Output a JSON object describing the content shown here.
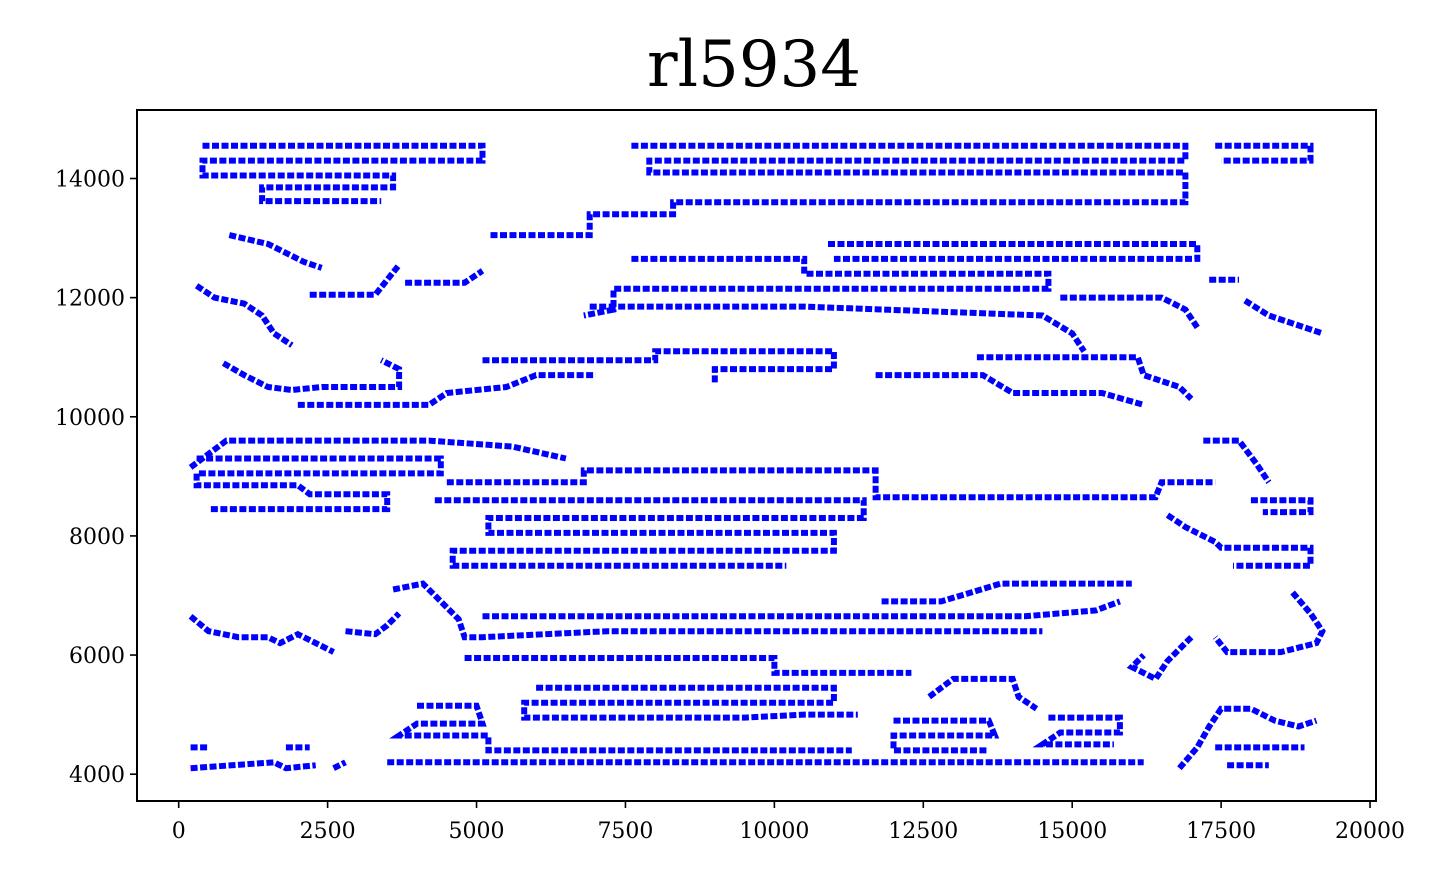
{
  "chart_data": {
    "type": "line",
    "title": "rl5934",
    "xlabel": "",
    "ylabel": "",
    "xlim": [
      -700,
      20100
    ],
    "ylim": [
      3550,
      15150
    ],
    "xticks": [
      0,
      2500,
      5000,
      7500,
      10000,
      12500,
      15000,
      17500,
      20000
    ],
    "yticks": [
      4000,
      6000,
      8000,
      10000,
      12000,
      14000
    ],
    "grid": false,
    "legend": "none",
    "series": [
      {
        "color": "#0000ff",
        "segments": [
          [
            [
              400,
              14550
            ],
            [
              5100,
              14550
            ],
            [
              5100,
              14300
            ],
            [
              400,
              14300
            ],
            [
              400,
              14050
            ],
            [
              3600,
              14050
            ],
            [
              3600,
              13850
            ],
            [
              1400,
              13850
            ],
            [
              1400,
              13620
            ],
            [
              3400,
              13620
            ]
          ],
          [
            [
              7600,
              14550
            ],
            [
              16900,
              14550
            ],
            [
              16900,
              14300
            ],
            [
              7900,
              14300
            ],
            [
              7900,
              14100
            ],
            [
              16900,
              14100
            ],
            [
              16900,
              13600
            ],
            [
              8300,
              13600
            ],
            [
              8300,
              13400
            ],
            [
              6900,
              13400
            ],
            [
              6900,
              13050
            ],
            [
              5200,
              13050
            ]
          ],
          [
            [
              17400,
              14550
            ],
            [
              19000,
              14550
            ],
            [
              19000,
              14300
            ],
            [
              17500,
              14300
            ]
          ],
          [
            [
              850,
              13050
            ],
            [
              1500,
              12900
            ],
            [
              2100,
              12600
            ],
            [
              2400,
              12500
            ]
          ],
          [
            [
              300,
              12200
            ],
            [
              600,
              12000
            ],
            [
              1100,
              11900
            ],
            [
              1400,
              11700
            ],
            [
              1600,
              11400
            ],
            [
              1900,
              11200
            ]
          ],
          [
            [
              2200,
              12050
            ],
            [
              3300,
              12050
            ],
            [
              3500,
              12300
            ],
            [
              3700,
              12550
            ]
          ],
          [
            [
              3800,
              12250
            ],
            [
              4800,
              12250
            ],
            [
              5100,
              12450
            ]
          ],
          [
            [
              7600,
              12650
            ],
            [
              10500,
              12650
            ],
            [
              10500,
              12400
            ],
            [
              14600,
              12400
            ],
            [
              14600,
              12150
            ],
            [
              7300,
              12150
            ],
            [
              7300,
              11800
            ],
            [
              6800,
              11700
            ]
          ],
          [
            [
              10900,
              12900
            ],
            [
              12500,
              12900
            ],
            [
              17100,
              12900
            ],
            [
              17100,
              12650
            ],
            [
              11000,
              12650
            ]
          ],
          [
            [
              17300,
              12300
            ],
            [
              17800,
              12300
            ]
          ],
          [
            [
              17900,
              11950
            ],
            [
              18300,
              11700
            ],
            [
              18900,
              11500
            ],
            [
              19200,
              11400
            ]
          ],
          [
            [
              14800,
              12000
            ],
            [
              16500,
              12000
            ],
            [
              16900,
              11800
            ],
            [
              17100,
              11500
            ]
          ],
          [
            [
              6900,
              11850
            ],
            [
              10500,
              11850
            ],
            [
              14500,
              11700
            ],
            [
              15000,
              11400
            ],
            [
              15200,
              11100
            ]
          ],
          [
            [
              750,
              10900
            ],
            [
              1100,
              10700
            ],
            [
              1500,
              10500
            ],
            [
              1900,
              10450
            ],
            [
              2400,
              10500
            ],
            [
              3700,
              10500
            ],
            [
              3700,
              10800
            ],
            [
              3400,
              10950
            ]
          ],
          [
            [
              5100,
              10950
            ],
            [
              8000,
              10950
            ],
            [
              8000,
              11100
            ],
            [
              11000,
              11100
            ],
            [
              11000,
              10800
            ],
            [
              9000,
              10800
            ],
            [
              9000,
              10550
            ]
          ],
          [
            [
              13400,
              11000
            ],
            [
              16100,
              11000
            ],
            [
              16200,
              10700
            ],
            [
              16800,
              10500
            ],
            [
              17000,
              10300
            ]
          ],
          [
            [
              2000,
              10200
            ],
            [
              4200,
              10200
            ],
            [
              4500,
              10400
            ],
            [
              5500,
              10500
            ],
            [
              6000,
              10700
            ],
            [
              7000,
              10700
            ]
          ],
          [
            [
              11700,
              10700
            ],
            [
              13500,
              10700
            ],
            [
              14000,
              10400
            ],
            [
              15500,
              10400
            ],
            [
              16200,
              10200
            ]
          ],
          [
            [
              200,
              9150
            ],
            [
              800,
              9600
            ],
            [
              1500,
              9600
            ],
            [
              3100,
              9600
            ],
            [
              4200,
              9600
            ],
            [
              5600,
              9500
            ],
            [
              6500,
              9300
            ]
          ],
          [
            [
              300,
              9300
            ],
            [
              4400,
              9300
            ],
            [
              4400,
              9050
            ],
            [
              300,
              9050
            ],
            [
              300,
              8850
            ],
            [
              2000,
              8850
            ],
            [
              2200,
              8700
            ],
            [
              3500,
              8700
            ],
            [
              3500,
              8450
            ],
            [
              500,
              8450
            ]
          ],
          [
            [
              4500,
              8900
            ],
            [
              6800,
              8900
            ],
            [
              6800,
              9100
            ],
            [
              11700,
              9100
            ],
            [
              11700,
              8650
            ],
            [
              16400,
              8650
            ],
            [
              16500,
              8900
            ],
            [
              17400,
              8900
            ]
          ],
          [
            [
              4300,
              8600
            ],
            [
              11500,
              8600
            ],
            [
              11500,
              8300
            ],
            [
              5200,
              8300
            ],
            [
              5200,
              8050
            ],
            [
              11000,
              8050
            ],
            [
              11000,
              7750
            ],
            [
              4600,
              7750
            ],
            [
              4600,
              7500
            ],
            [
              10200,
              7500
            ]
          ],
          [
            [
              17200,
              9600
            ],
            [
              17800,
              9600
            ],
            [
              18100,
              9200
            ],
            [
              18300,
              8900
            ]
          ],
          [
            [
              18000,
              8600
            ],
            [
              19000,
              8600
            ],
            [
              19000,
              8400
            ],
            [
              18200,
              8400
            ]
          ],
          [
            [
              16600,
              8350
            ],
            [
              16900,
              8150
            ],
            [
              17400,
              7900
            ],
            [
              17500,
              7800
            ],
            [
              19000,
              7800
            ],
            [
              19000,
              7500
            ],
            [
              17700,
              7500
            ]
          ],
          [
            [
              3600,
              7100
            ],
            [
              4100,
              7200
            ],
            [
              4400,
              6900
            ],
            [
              4700,
              6600
            ],
            [
              4800,
              6300
            ],
            [
              5100,
              6300
            ],
            [
              7200,
              6400
            ],
            [
              10800,
              6400
            ],
            [
              14500,
              6400
            ]
          ],
          [
            [
              5100,
              6650
            ],
            [
              14200,
              6650
            ],
            [
              15400,
              6750
            ],
            [
              15800,
              6900
            ]
          ],
          [
            [
              11800,
              6900
            ],
            [
              12800,
              6900
            ],
            [
              13800,
              7200
            ],
            [
              16000,
              7200
            ]
          ],
          [
            [
              200,
              6650
            ],
            [
              500,
              6400
            ],
            [
              1000,
              6300
            ],
            [
              1500,
              6300
            ],
            [
              1700,
              6200
            ],
            [
              2000,
              6350
            ],
            [
              2400,
              6150
            ],
            [
              2600,
              6050
            ]
          ],
          [
            [
              2800,
              6400
            ],
            [
              3300,
              6350
            ],
            [
              3500,
              6500
            ],
            [
              3700,
              6700
            ]
          ],
          [
            [
              18700,
              7050
            ],
            [
              19000,
              6700
            ],
            [
              19200,
              6400
            ],
            [
              19100,
              6200
            ],
            [
              18500,
              6050
            ],
            [
              17600,
              6050
            ],
            [
              17400,
              6300
            ]
          ],
          [
            [
              17000,
              6300
            ],
            [
              16600,
              5900
            ],
            [
              16400,
              5600
            ],
            [
              16000,
              5800
            ],
            [
              16200,
              6000
            ]
          ],
          [
            [
              4800,
              5950
            ],
            [
              10000,
              5950
            ],
            [
              10000,
              5700
            ],
            [
              12300,
              5700
            ]
          ],
          [
            [
              6000,
              5450
            ],
            [
              11000,
              5450
            ],
            [
              11000,
              5200
            ],
            [
              5800,
              5200
            ],
            [
              5800,
              4950
            ],
            [
              9500,
              4950
            ],
            [
              10500,
              5000
            ],
            [
              11400,
              5000
            ]
          ],
          [
            [
              12600,
              5300
            ],
            [
              13000,
              5600
            ],
            [
              14000,
              5600
            ],
            [
              14100,
              5300
            ],
            [
              14400,
              5100
            ]
          ],
          [
            [
              4000,
              5150
            ],
            [
              5000,
              5150
            ],
            [
              5100,
              4850
            ],
            [
              4000,
              4850
            ],
            [
              3700,
              4650
            ],
            [
              5200,
              4650
            ],
            [
              5200,
              4400
            ],
            [
              11300,
              4400
            ]
          ],
          [
            [
              12000,
              4900
            ],
            [
              13600,
              4900
            ],
            [
              13700,
              4650
            ],
            [
              12000,
              4650
            ],
            [
              12000,
              4400
            ],
            [
              13600,
              4400
            ]
          ],
          [
            [
              14600,
              4950
            ],
            [
              15800,
              4950
            ],
            [
              15800,
              4700
            ],
            [
              14800,
              4700
            ],
            [
              14500,
              4500
            ],
            [
              15700,
              4500
            ]
          ],
          [
            [
              3500,
              4200
            ],
            [
              11000,
              4200
            ],
            [
              14000,
              4200
            ],
            [
              16200,
              4200
            ]
          ],
          [
            [
              200,
              4450
            ],
            [
              500,
              4450
            ]
          ],
          [
            [
              200,
              4100
            ],
            [
              1600,
              4200
            ],
            [
              1800,
              4100
            ],
            [
              2300,
              4150
            ]
          ],
          [
            [
              1800,
              4450
            ],
            [
              2200,
              4450
            ]
          ],
          [
            [
              2600,
              4100
            ],
            [
              2800,
              4200
            ]
          ],
          [
            [
              16800,
              4100
            ],
            [
              17100,
              4450
            ],
            [
              17300,
              4800
            ],
            [
              17500,
              5100
            ],
            [
              18000,
              5100
            ],
            [
              18400,
              4900
            ],
            [
              18800,
              4800
            ],
            [
              19100,
              4900
            ]
          ],
          [
            [
              17400,
              4450
            ],
            [
              18500,
              4450
            ],
            [
              18900,
              4450
            ]
          ],
          [
            [
              17600,
              4150
            ],
            [
              18300,
              4150
            ]
          ]
        ]
      }
    ]
  }
}
